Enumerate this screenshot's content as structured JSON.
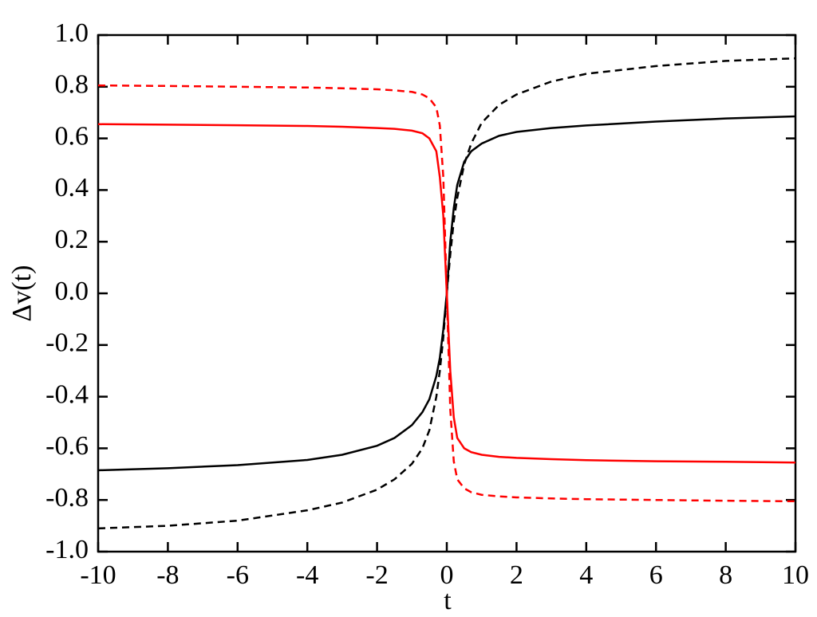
{
  "chart_data": {
    "type": "line",
    "xlabel": "t",
    "ylabel": "Δv(t)",
    "x": [
      -10,
      -8,
      -6,
      -4,
      -3,
      -2,
      -1.5,
      -1,
      -0.7,
      -0.5,
      -0.3,
      -0.2,
      -0.1,
      0,
      0.1,
      0.2,
      0.3,
      0.5,
      0.7,
      1,
      1.5,
      2,
      3,
      4,
      6,
      8,
      10
    ],
    "series": [
      {
        "color": "#000000",
        "dashed": false,
        "values": [
          -0.685,
          -0.677,
          -0.665,
          -0.645,
          -0.625,
          -0.59,
          -0.56,
          -0.51,
          -0.46,
          -0.41,
          -0.32,
          -0.25,
          -0.14,
          0,
          0.2,
          0.33,
          0.42,
          0.51,
          0.55,
          0.58,
          0.61,
          0.625,
          0.64,
          0.65,
          0.665,
          0.677,
          0.685
        ]
      },
      {
        "color": "#000000",
        "dashed": true,
        "values": [
          -0.91,
          -0.9,
          -0.88,
          -0.84,
          -0.81,
          -0.76,
          -0.72,
          -0.66,
          -0.6,
          -0.53,
          -0.4,
          -0.3,
          -0.17,
          0,
          0.15,
          0.28,
          0.37,
          0.5,
          0.58,
          0.66,
          0.73,
          0.77,
          0.82,
          0.85,
          0.88,
          0.9,
          0.91
        ]
      },
      {
        "color": "#ff0000",
        "dashed": false,
        "values": [
          0.655,
          0.653,
          0.651,
          0.648,
          0.645,
          0.64,
          0.637,
          0.63,
          0.62,
          0.6,
          0.55,
          0.45,
          0.3,
          0,
          -0.3,
          -0.48,
          -0.56,
          -0.6,
          -0.615,
          -0.625,
          -0.633,
          -0.637,
          -0.642,
          -0.646,
          -0.65,
          -0.652,
          -0.655
        ]
      },
      {
        "color": "#ff0000",
        "dashed": true,
        "values": [
          0.805,
          0.803,
          0.8,
          0.797,
          0.794,
          0.79,
          0.786,
          0.78,
          0.77,
          0.755,
          0.72,
          0.65,
          0.45,
          0,
          -0.45,
          -0.65,
          -0.72,
          -0.755,
          -0.77,
          -0.78,
          -0.786,
          -0.79,
          -0.794,
          -0.797,
          -0.8,
          -0.803,
          -0.805
        ]
      }
    ],
    "xlim": [
      -10,
      10
    ],
    "xticks": [
      -10,
      -8,
      -6,
      -4,
      -2,
      0,
      2,
      4,
      6,
      8,
      10
    ],
    "ylim": [
      -1,
      1
    ],
    "yticks": [
      {
        "value": -1,
        "label": "-1.0"
      },
      -0.8,
      -0.6,
      -0.4,
      -0.2,
      {
        "value": 0,
        "label": "0.0"
      },
      0.2,
      0.4,
      0.6,
      0.8,
      {
        "value": 1,
        "label": "1.0"
      }
    ],
    "grid": false
  }
}
